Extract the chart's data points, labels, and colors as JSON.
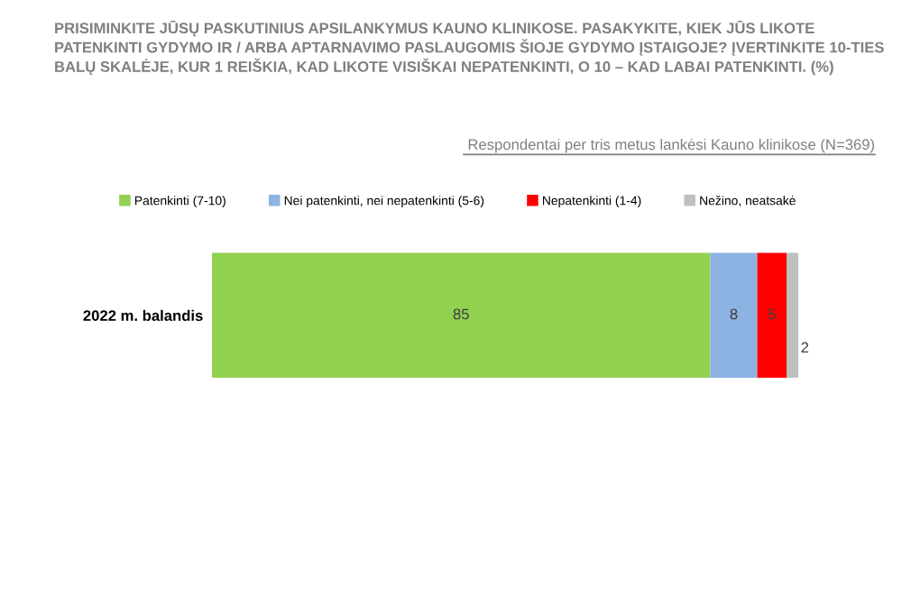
{
  "chart_data": {
    "type": "bar",
    "orientation": "horizontal",
    "stacked": true,
    "title": "PRISIMINKITE JŪSŲ PASKUTINIUS APSILANKYMUS KAUNO KLINIKOSE. PASAKYKITE, KIEK JŪS LIKOTE PATENKINTI GYDYMO IR / ARBA APTARNAVIMO PASLAUGOMIS ŠIOJE GYDYMO ĮSTAIGOJE? ĮVERTINKITE 10-TIES BALŲ SKALĖJE, KUR 1 REIŠKIA, KAD LIKOTE VISIŠKAI NEPATENKINTI, O 10 – KAD LABAI PATENKINTI. (%)",
    "subtitle": "Respondentai per tris metus lankėsi Kauno klinikose (N=369)",
    "categories": [
      "2022 m. balandis"
    ],
    "series": [
      {
        "name": "Patenkinti (7-10)",
        "color": "#92d050",
        "values": [
          85
        ]
      },
      {
        "name": "Nei patenkinti, nei nepatenkinti (5-6)",
        "color": "#8db3e2",
        "values": [
          8
        ]
      },
      {
        "name": "Nepatenkinti (1-4)",
        "color": "#ff0000",
        "values": [
          5
        ]
      },
      {
        "name": "Nežino, neatsakė",
        "color": "#bfbfbf",
        "values": [
          2
        ]
      }
    ],
    "data_labels": true,
    "legend": "top"
  }
}
